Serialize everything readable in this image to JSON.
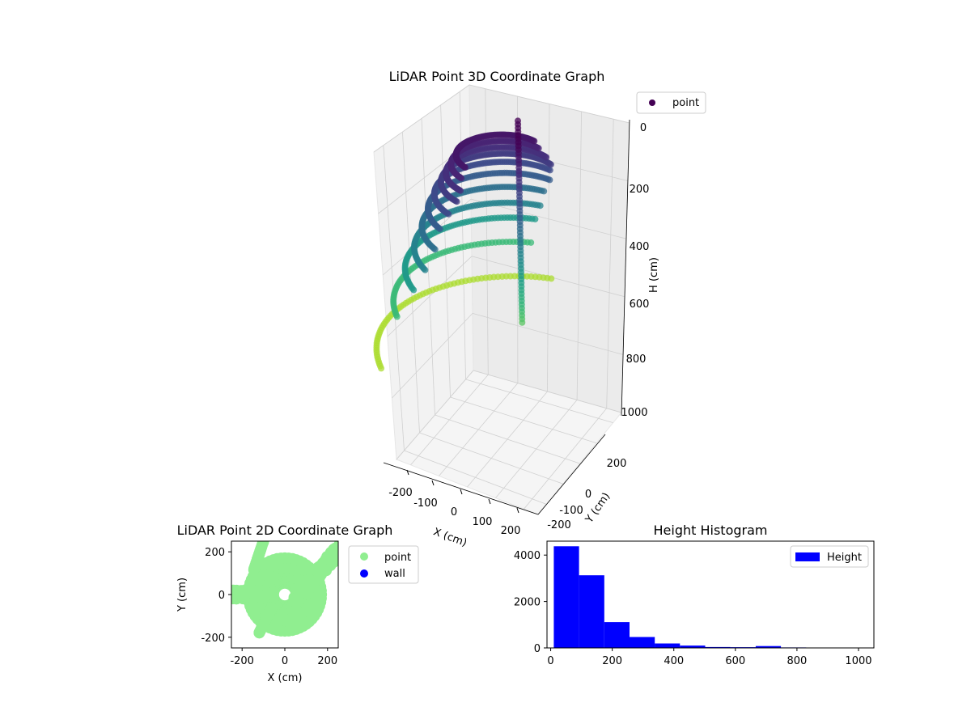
{
  "chart_data": [
    {
      "type": "scatter3d",
      "title": "LiDAR Point 3D Coordinate Graph",
      "xlabel": "X (cm)",
      "ylabel": "Y (cm)",
      "zlabel": "H (cm)",
      "xlim": [
        -250,
        250
      ],
      "ylim": [
        -250,
        250
      ],
      "zlim": [
        0,
        1000
      ],
      "z_inverted": true,
      "xticks": [
        "-200",
        "-100",
        "0",
        "100",
        "200"
      ],
      "yticks": [
        "-200",
        "-100",
        "0",
        "200"
      ],
      "zticks": [
        "0",
        "200",
        "400",
        "600",
        "800",
        "1000"
      ],
      "colormap": "viridis",
      "legend": {
        "position": "top-right",
        "entries": [
          {
            "label": "point",
            "color": "#440154"
          }
        ]
      },
      "rings": [
        {
          "r": 120,
          "h": 50,
          "arc_start": 200,
          "arc_end": 380
        },
        {
          "r": 135,
          "h": 80,
          "arc_start": 200,
          "arc_end": 380
        },
        {
          "r": 150,
          "h": 110,
          "arc_start": 195,
          "arc_end": 385
        },
        {
          "r": 165,
          "h": 140,
          "arc_start": 195,
          "arc_end": 385
        },
        {
          "r": 185,
          "h": 180,
          "arc_start": 200,
          "arc_end": 375
        },
        {
          "r": 205,
          "h": 230,
          "arc_start": 205,
          "arc_end": 370
        },
        {
          "r": 225,
          "h": 290,
          "arc_start": 205,
          "arc_end": 360
        },
        {
          "r": 250,
          "h": 360,
          "arc_start": 210,
          "arc_end": 355
        },
        {
          "r": 280,
          "h": 430,
          "arc_start": 215,
          "arc_end": 350
        },
        {
          "r": 320,
          "h": 540,
          "arc_start": 225,
          "arc_end": 345
        },
        {
          "r": 380,
          "h": 700,
          "arc_start": 225,
          "arc_end": 352
        }
      ],
      "vertical_line": {
        "x": 0,
        "y": 60,
        "h_from": -80,
        "h_to": 600
      }
    },
    {
      "type": "scatter",
      "title": "LiDAR Point 2D Coordinate Graph",
      "xlabel": "X (cm)",
      "ylabel": "Y (cm)",
      "xlim": [
        -250,
        250
      ],
      "ylim": [
        -250,
        250
      ],
      "xticks": [
        -200,
        0,
        200
      ],
      "yticks": [
        -200,
        0,
        200
      ],
      "legend": {
        "position": "right",
        "entries": [
          {
            "label": "point",
            "color": "#90ee90"
          },
          {
            "label": "wall",
            "color": "#0000ff"
          }
        ]
      }
    },
    {
      "type": "bar",
      "title": "Height Histogram",
      "xlabel": "",
      "ylabel": "",
      "xlim": [
        -12,
        1050
      ],
      "ylim": [
        0,
        4600
      ],
      "xticks": [
        0,
        200,
        400,
        600,
        800,
        1000
      ],
      "yticks": [
        0,
        2000,
        4000
      ],
      "bin_edges": [
        10,
        92,
        174,
        256,
        338,
        420,
        502,
        584,
        666,
        748,
        830,
        912,
        994
      ],
      "values": [
        4380,
        3130,
        1110,
        470,
        190,
        100,
        40,
        30,
        80,
        20,
        5,
        3
      ],
      "color": "#0000ff",
      "legend": {
        "position": "top-right",
        "entries": [
          {
            "label": "Height",
            "color": "#0000ff"
          }
        ]
      }
    }
  ]
}
